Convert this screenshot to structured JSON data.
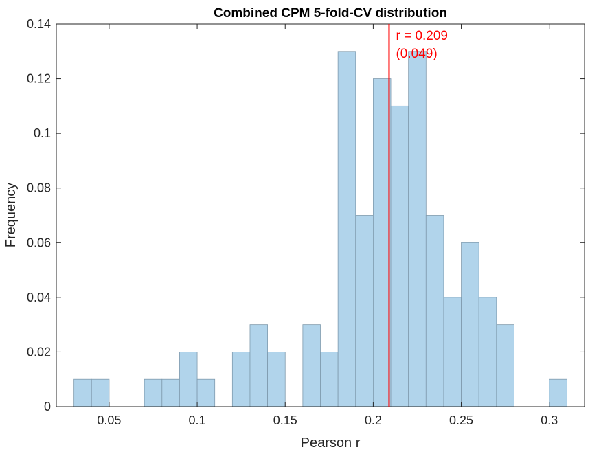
{
  "chart_data": {
    "type": "bar",
    "title": "Combined CPM 5-fold-CV distribution",
    "xlabel": "Pearson r",
    "ylabel": "Frequency",
    "xlim": [
      0.02,
      0.32
    ],
    "ylim": [
      0,
      0.14
    ],
    "xticks": [
      0.05,
      0.1,
      0.15,
      0.2,
      0.25,
      0.3
    ],
    "xtick_labels": [
      "0.05",
      "0.1",
      "0.15",
      "0.2",
      "0.25",
      "0.3"
    ],
    "yticks": [
      0,
      0.02,
      0.04,
      0.06,
      0.08,
      0.1,
      0.12,
      0.14
    ],
    "ytick_labels": [
      "0",
      "0.02",
      "0.04",
      "0.06",
      "0.08",
      "0.1",
      "0.12",
      "0.14"
    ],
    "bins": [
      {
        "start": 0.03,
        "end": 0.04,
        "value": 0.01
      },
      {
        "start": 0.04,
        "end": 0.05,
        "value": 0.01
      },
      {
        "start": 0.05,
        "end": 0.06,
        "value": 0
      },
      {
        "start": 0.06,
        "end": 0.07,
        "value": 0
      },
      {
        "start": 0.07,
        "end": 0.08,
        "value": 0.01
      },
      {
        "start": 0.08,
        "end": 0.09,
        "value": 0.01
      },
      {
        "start": 0.09,
        "end": 0.1,
        "value": 0.02
      },
      {
        "start": 0.1,
        "end": 0.11,
        "value": 0.01
      },
      {
        "start": 0.11,
        "end": 0.12,
        "value": 0
      },
      {
        "start": 0.12,
        "end": 0.13,
        "value": 0.02
      },
      {
        "start": 0.13,
        "end": 0.14,
        "value": 0.03
      },
      {
        "start": 0.14,
        "end": 0.15,
        "value": 0.02
      },
      {
        "start": 0.15,
        "end": 0.16,
        "value": 0
      },
      {
        "start": 0.16,
        "end": 0.17,
        "value": 0.03
      },
      {
        "start": 0.17,
        "end": 0.18,
        "value": 0.02
      },
      {
        "start": 0.18,
        "end": 0.19,
        "value": 0.13
      },
      {
        "start": 0.19,
        "end": 0.2,
        "value": 0.07
      },
      {
        "start": 0.2,
        "end": 0.21,
        "value": 0.12
      },
      {
        "start": 0.21,
        "end": 0.22,
        "value": 0.11
      },
      {
        "start": 0.22,
        "end": 0.23,
        "value": 0.13
      },
      {
        "start": 0.23,
        "end": 0.24,
        "value": 0.07
      },
      {
        "start": 0.24,
        "end": 0.25,
        "value": 0.04
      },
      {
        "start": 0.25,
        "end": 0.26,
        "value": 0.06
      },
      {
        "start": 0.26,
        "end": 0.27,
        "value": 0.04
      },
      {
        "start": 0.27,
        "end": 0.28,
        "value": 0.03
      },
      {
        "start": 0.28,
        "end": 0.29,
        "value": 0
      },
      {
        "start": 0.29,
        "end": 0.3,
        "value": 0
      },
      {
        "start": 0.3,
        "end": 0.31,
        "value": 0.01
      }
    ],
    "reference_line": {
      "x": 0.209,
      "label_line1": "r = 0.209",
      "label_line2": "(0.049)",
      "color": "#ff0000"
    },
    "bar_fill": "#b1d4eb",
    "bar_edge": "#7f9aad",
    "grid": false,
    "box": true
  }
}
